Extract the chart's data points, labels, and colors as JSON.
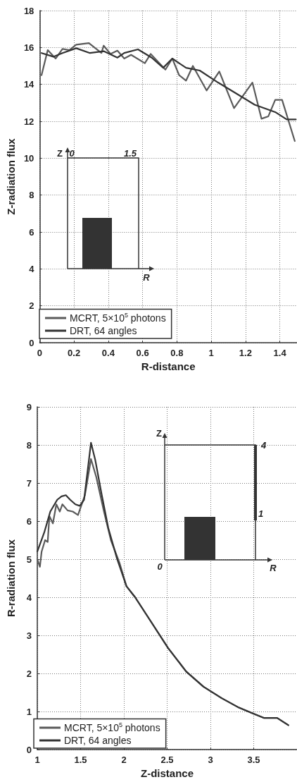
{
  "chart_data": [
    {
      "type": "line",
      "xlabel": "R-distance",
      "ylabel": "Z-radiation flux",
      "xlim": [
        0,
        1.5
      ],
      "xticks": [
        0,
        0.2,
        0.4,
        0.6,
        0.8,
        1,
        1.2,
        1.4
      ],
      "ylim": [
        0,
        18
      ],
      "yticks": [
        0,
        2,
        4,
        6,
        8,
        10,
        12,
        14,
        16,
        18
      ],
      "grid": true,
      "legend": "bottom left",
      "marker": "none",
      "line_style": "solid",
      "annotations": [
        "Z",
        "0",
        "1.5",
        "R"
      ],
      "series": [
        {
          "name": "MCRT, 5×10$^{5}$ photons",
          "color": "#5a5a5a",
          "x": [
            0.011,
            0.047,
            0.093,
            0.133,
            0.173,
            0.213,
            0.253,
            0.287,
            0.36,
            0.373,
            0.413,
            0.453,
            0.493,
            0.533,
            0.613,
            0.647,
            0.733,
            0.773,
            0.813,
            0.853,
            0.893,
            0.973,
            1.047,
            1.133,
            1.24,
            1.293,
            1.333,
            1.373,
            1.413,
            1.487
          ],
          "values": [
            14.5,
            15.86,
            15.4,
            15.92,
            15.86,
            16.15,
            16.2,
            16.24,
            15.7,
            16.1,
            15.65,
            15.83,
            15.4,
            15.6,
            15.15,
            15.65,
            14.8,
            15.4,
            14.5,
            14.2,
            15.0,
            13.67,
            14.7,
            12.71,
            14.1,
            12.14,
            12.27,
            13.16,
            13.16,
            10.93
          ]
        },
        {
          "name": "DRT, 64 angles",
          "color": "#333333",
          "x": [
            0.011,
            0.08,
            0.133,
            0.213,
            0.293,
            0.373,
            0.453,
            0.493,
            0.573,
            0.653,
            0.72,
            0.773,
            0.853,
            0.933,
            1.04,
            1.147,
            1.253,
            1.373,
            1.44,
            1.493
          ],
          "values": [
            15.7,
            15.5,
            15.7,
            15.96,
            15.7,
            15.8,
            15.45,
            15.7,
            15.9,
            15.45,
            14.9,
            15.4,
            14.9,
            14.75,
            14.1,
            13.5,
            12.9,
            12.5,
            12.1,
            12.1
          ]
        }
      ]
    },
    {
      "type": "line",
      "xlabel": "Z-distance",
      "ylabel": "R-radiation flux",
      "xlim": [
        1,
        4
      ],
      "xticks": [
        1,
        1.5,
        2,
        2.5,
        3,
        3.5
      ],
      "ylim": [
        0,
        9
      ],
      "yticks": [
        0,
        1,
        2,
        3,
        4,
        5,
        6,
        7,
        8,
        9
      ],
      "grid": true,
      "legend": "bottom left",
      "marker": "none",
      "line_style": "solid",
      "annotations": [
        "Z",
        "0",
        "4",
        "1",
        "R"
      ],
      "series": [
        {
          "name": "MCRT, 5×10$^{5}$ photons",
          "color": "#5a5a5a",
          "x": [
            1.0,
            1.03,
            1.05,
            1.09,
            1.12,
            1.14,
            1.18,
            1.22,
            1.26,
            1.29,
            1.35,
            1.41,
            1.47,
            1.55,
            1.62,
            1.68,
            1.77,
            1.85,
            1.95,
            2.03,
            2.13,
            2.31,
            2.51,
            2.72,
            2.92,
            3.13,
            3.33,
            3.49,
            3.62,
            3.77,
            3.9
          ],
          "values": [
            5.0,
            4.8,
            5.2,
            5.5,
            5.45,
            6.13,
            5.94,
            6.44,
            6.25,
            6.44,
            6.28,
            6.25,
            6.16,
            6.68,
            7.63,
            7.17,
            6.25,
            5.5,
            4.9,
            4.29,
            4.0,
            3.37,
            2.67,
            2.05,
            1.65,
            1.35,
            1.1,
            0.95,
            0.83,
            0.83,
            0.64
          ]
        },
        {
          "name": "DRT, 64 angles",
          "color": "#333333",
          "x": [
            1.0,
            1.08,
            1.15,
            1.23,
            1.28,
            1.33,
            1.38,
            1.44,
            1.49,
            1.54,
            1.58,
            1.62,
            1.67,
            1.74,
            1.82,
            1.92,
            2.03,
            2.13,
            2.31,
            2.51,
            2.72,
            2.92,
            3.13,
            3.33,
            3.49,
            3.62,
            3.77,
            3.9
          ],
          "values": [
            5.2,
            5.7,
            6.25,
            6.56,
            6.65,
            6.68,
            6.56,
            6.44,
            6.4,
            6.56,
            7.3,
            8.06,
            7.6,
            6.74,
            5.82,
            5.02,
            4.29,
            4.0,
            3.37,
            2.67,
            2.05,
            1.65,
            1.35,
            1.1,
            0.95,
            0.83,
            0.83,
            0.64
          ]
        }
      ]
    }
  ]
}
